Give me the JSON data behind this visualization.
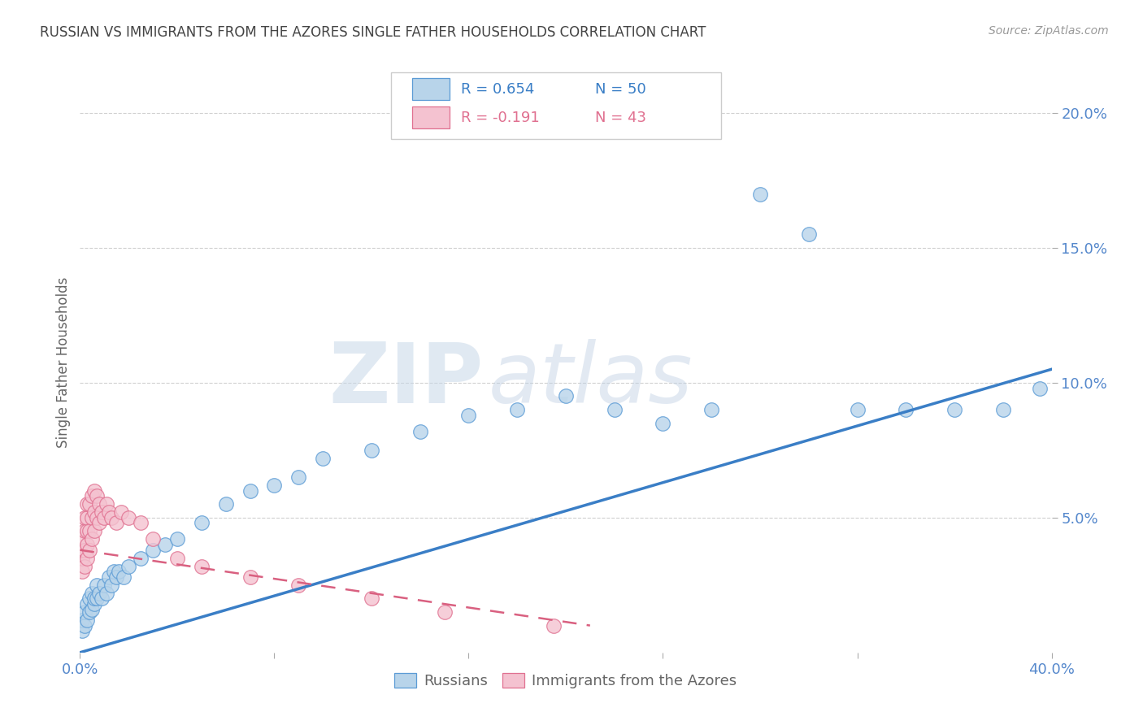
{
  "title": "RUSSIAN VS IMMIGRANTS FROM THE AZORES SINGLE FATHER HOUSEHOLDS CORRELATION CHART",
  "source_text": "Source: ZipAtlas.com",
  "ylabel": "Single Father Households",
  "watermark": "ZIPatlas",
  "legend_blue_r": "R = 0.654",
  "legend_blue_n": "N = 50",
  "legend_pink_r": "R = -0.191",
  "legend_pink_n": "N = 43",
  "blue_face": "#b8d4ea",
  "blue_edge": "#5b9bd5",
  "pink_face": "#f4c2d0",
  "pink_edge": "#e07090",
  "blue_line": "#3a7ec6",
  "pink_line": "#d96080",
  "blue_x": [
    0.001,
    0.001,
    0.002,
    0.002,
    0.003,
    0.003,
    0.004,
    0.004,
    0.005,
    0.005,
    0.006,
    0.006,
    0.007,
    0.007,
    0.008,
    0.009,
    0.01,
    0.011,
    0.012,
    0.013,
    0.014,
    0.015,
    0.016,
    0.018,
    0.02,
    0.025,
    0.03,
    0.035,
    0.04,
    0.05,
    0.06,
    0.07,
    0.08,
    0.09,
    0.1,
    0.12,
    0.14,
    0.16,
    0.18,
    0.2,
    0.22,
    0.24,
    0.26,
    0.28,
    0.3,
    0.32,
    0.34,
    0.36,
    0.38,
    0.395
  ],
  "blue_y": [
    0.008,
    0.012,
    0.01,
    0.015,
    0.012,
    0.018,
    0.015,
    0.02,
    0.016,
    0.022,
    0.018,
    0.02,
    0.02,
    0.025,
    0.022,
    0.02,
    0.025,
    0.022,
    0.028,
    0.025,
    0.03,
    0.028,
    0.03,
    0.028,
    0.032,
    0.035,
    0.038,
    0.04,
    0.042,
    0.048,
    0.055,
    0.06,
    0.062,
    0.065,
    0.072,
    0.075,
    0.082,
    0.088,
    0.09,
    0.095,
    0.09,
    0.085,
    0.09,
    0.17,
    0.155,
    0.09,
    0.09,
    0.09,
    0.09,
    0.098
  ],
  "pink_x": [
    0.001,
    0.001,
    0.001,
    0.001,
    0.002,
    0.002,
    0.002,
    0.002,
    0.003,
    0.003,
    0.003,
    0.003,
    0.003,
    0.004,
    0.004,
    0.004,
    0.005,
    0.005,
    0.005,
    0.006,
    0.006,
    0.006,
    0.007,
    0.007,
    0.008,
    0.008,
    0.009,
    0.01,
    0.011,
    0.012,
    0.013,
    0.015,
    0.017,
    0.02,
    0.025,
    0.03,
    0.04,
    0.05,
    0.07,
    0.09,
    0.12,
    0.15,
    0.195
  ],
  "pink_y": [
    0.03,
    0.035,
    0.038,
    0.042,
    0.032,
    0.038,
    0.045,
    0.05,
    0.035,
    0.04,
    0.045,
    0.05,
    0.055,
    0.038,
    0.045,
    0.055,
    0.042,
    0.05,
    0.058,
    0.045,
    0.052,
    0.06,
    0.05,
    0.058,
    0.048,
    0.055,
    0.052,
    0.05,
    0.055,
    0.052,
    0.05,
    0.048,
    0.052,
    0.05,
    0.048,
    0.042,
    0.035,
    0.032,
    0.028,
    0.025,
    0.02,
    0.015,
    0.01
  ],
  "xlim": [
    0.0,
    0.4
  ],
  "ylim": [
    0.0,
    0.215
  ],
  "ytick_vals": [
    0.05,
    0.1,
    0.15,
    0.2
  ],
  "ytick_labels": [
    "5.0%",
    "10.0%",
    "15.0%",
    "20.0%"
  ],
  "background_color": "#ffffff",
  "grid_color": "#d0d0d0",
  "title_color": "#444444",
  "tick_color": "#5588cc"
}
